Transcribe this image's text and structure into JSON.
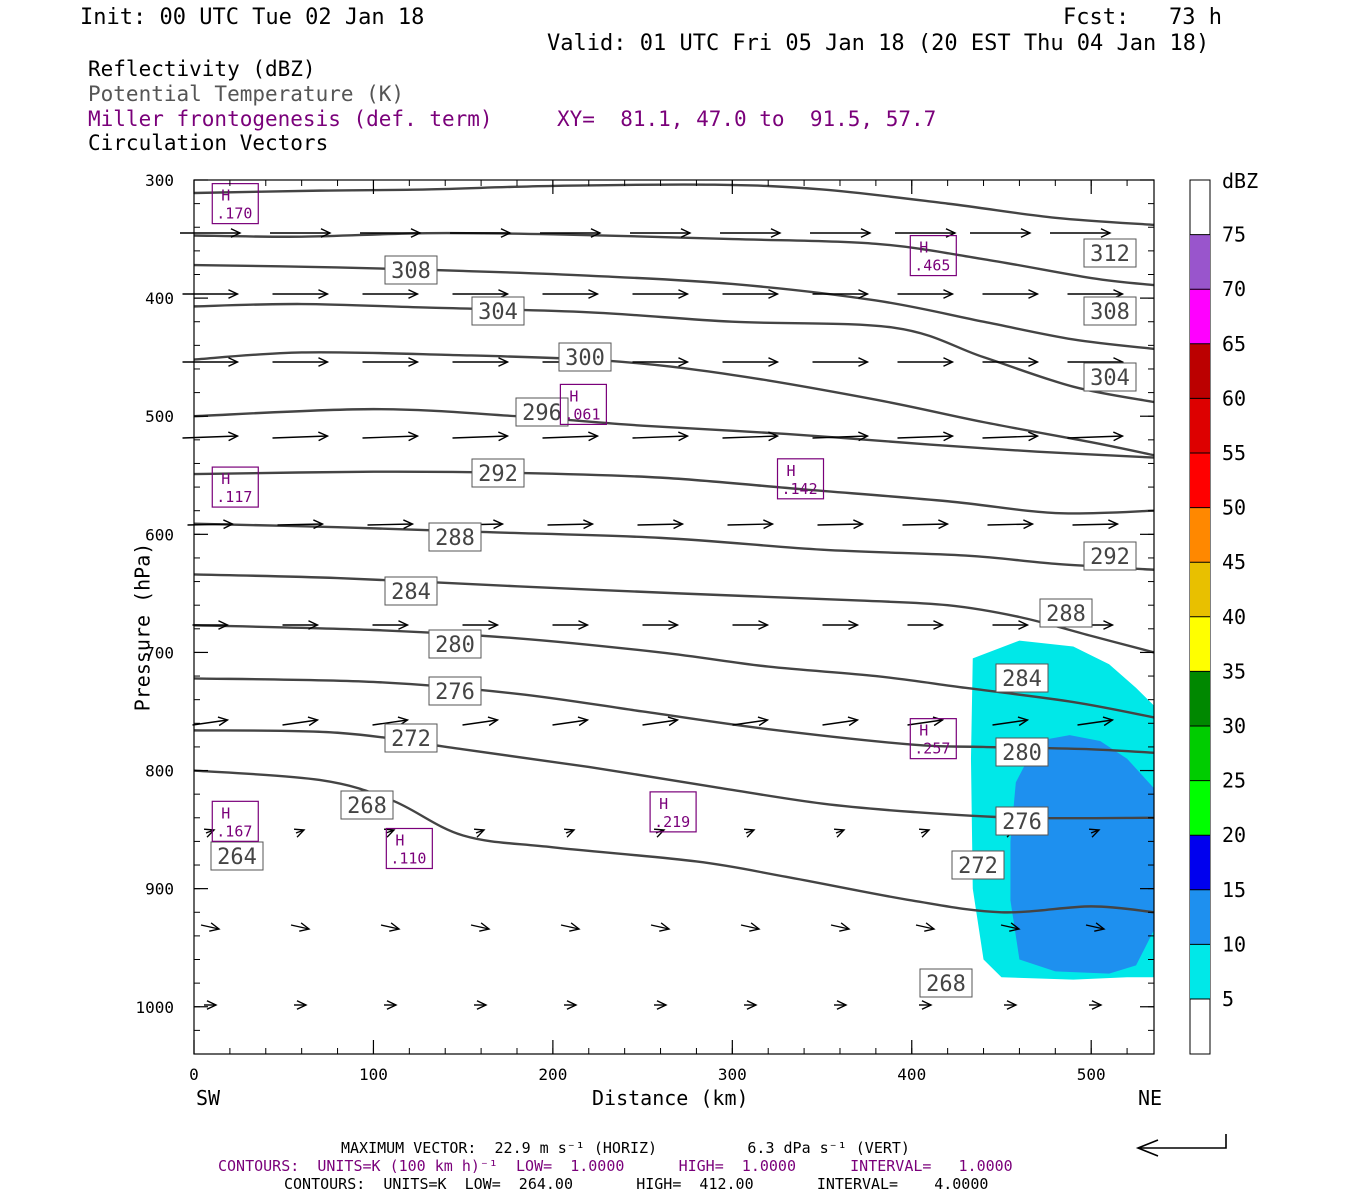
{
  "header": {
    "init": "Init: 00 UTC Tue 02 Jan 18",
    "fcst": "Fcst:   73 h",
    "valid": "Valid: 01 UTC Fri 05 Jan 18 (20 EST Thu 04 Jan 18)"
  },
  "fields": [
    {
      "label": "Reflectivity (dBZ)",
      "color": "#000000"
    },
    {
      "label": "Potential Temperature (K)",
      "color": "#555555"
    },
    {
      "label": "Miller frontogenesis (def. term)",
      "color": "#7a007a"
    },
    {
      "label": "Circulation Vectors",
      "color": "#000000"
    }
  ],
  "xy_label": "XY=  81.1, 47.0 to  91.5, 57.7",
  "footer": {
    "max_vector": "MAXIMUM VECTOR:  22.9 m s⁻¹ (HORIZ)          6.3 dPa s⁻¹ (VERT)",
    "contours_front": "CONTOURS:  UNITS=K (100 km h)⁻¹  LOW=  1.0000      HIGH=  1.0000      INTERVAL=   1.0000",
    "contours_theta": "CONTOURS:  UNITS=K  LOW=  264.00       HIGH=  412.00       INTERVAL=    4.0000"
  },
  "chart_data": {
    "type": "cross-section",
    "xlabel": "Distance (km)",
    "ylabel": "Pressure (hPa)",
    "x_ticks": [
      0,
      100,
      200,
      300,
      400,
      500
    ],
    "y_ticks": [
      300,
      400,
      500,
      600,
      700,
      800,
      900,
      1000
    ],
    "xlim": [
      0,
      535
    ],
    "ylim": [
      300,
      1040
    ],
    "x_end_labels": {
      "left": "SW",
      "right": "NE"
    },
    "colorbar": {
      "title": "dBZ",
      "levels": [
        5,
        10,
        15,
        20,
        25,
        30,
        35,
        40,
        45,
        50,
        55,
        60,
        65,
        70,
        75
      ],
      "colors": [
        "#00e8e8",
        "#1e90ef",
        "#0000ee",
        "#00ff00",
        "#00cc00",
        "#008800",
        "#ffff00",
        "#e8c000",
        "#ff8800",
        "#ff0000",
        "#dd0000",
        "#bb0000",
        "#ff00ff",
        "#9955cc"
      ]
    },
    "theta_contours": [
      {
        "level": 312,
        "points": [
          [
            0,
            311
          ],
          [
            70,
            309
          ],
          [
            130,
            308
          ],
          [
            200,
            305
          ],
          [
            290,
            304
          ],
          [
            350,
            308
          ],
          [
            420,
            320
          ],
          [
            480,
            332
          ],
          [
            535,
            338
          ]
        ]
      },
      {
        "level": 308,
        "points": [
          [
            0,
            347
          ],
          [
            60,
            348
          ],
          [
            130,
            345
          ],
          [
            200,
            346
          ],
          [
            300,
            350
          ],
          [
            380,
            354
          ],
          [
            440,
            367
          ],
          [
            500,
            383
          ],
          [
            535,
            389
          ]
        ]
      },
      {
        "level": 304,
        "points": [
          [
            0,
            372
          ],
          [
            80,
            374
          ],
          [
            150,
            377
          ],
          [
            220,
            381
          ],
          [
            300,
            388
          ],
          [
            380,
            402
          ],
          [
            440,
            420
          ],
          [
            490,
            435
          ],
          [
            535,
            443
          ]
        ]
      },
      {
        "level": 300,
        "points": [
          [
            0,
            407
          ],
          [
            60,
            405
          ],
          [
            130,
            408
          ],
          [
            220,
            412
          ],
          [
            300,
            420
          ],
          [
            390,
            425
          ],
          [
            440,
            450
          ],
          [
            490,
            475
          ],
          [
            535,
            488
          ]
        ]
      },
      {
        "level": 296,
        "points": [
          [
            0,
            452
          ],
          [
            60,
            446
          ],
          [
            140,
            448
          ],
          [
            230,
            453
          ],
          [
            300,
            465
          ],
          [
            380,
            486
          ],
          [
            440,
            505
          ],
          [
            500,
            522
          ],
          [
            535,
            533
          ]
        ]
      },
      {
        "level": 292,
        "points": [
          [
            0,
            500
          ],
          [
            100,
            494
          ],
          [
            180,
            500
          ],
          [
            250,
            508
          ],
          [
            330,
            515
          ],
          [
            410,
            524
          ],
          [
            470,
            530
          ],
          [
            535,
            535
          ]
        ]
      },
      {
        "level": 288,
        "points": [
          [
            0,
            549
          ],
          [
            100,
            547
          ],
          [
            180,
            548
          ],
          [
            260,
            552
          ],
          [
            340,
            562
          ],
          [
            420,
            572
          ],
          [
            480,
            582
          ],
          [
            535,
            580
          ]
        ]
      },
      {
        "level": 284,
        "points": [
          [
            0,
            591
          ],
          [
            80,
            594
          ],
          [
            160,
            598
          ],
          [
            260,
            603
          ],
          [
            350,
            613
          ],
          [
            430,
            618
          ],
          [
            480,
            625
          ],
          [
            535,
            630
          ]
        ]
      },
      {
        "level": 280,
        "points": [
          [
            0,
            634
          ],
          [
            80,
            637
          ],
          [
            180,
            644
          ],
          [
            270,
            650
          ],
          [
            370,
            656
          ],
          [
            420,
            660
          ],
          [
            460,
            670
          ],
          [
            500,
            686
          ],
          [
            535,
            700
          ]
        ]
      },
      {
        "level": 276,
        "points": [
          [
            0,
            677
          ],
          [
            100,
            681
          ],
          [
            180,
            688
          ],
          [
            260,
            700
          ],
          [
            320,
            712
          ],
          [
            380,
            720
          ],
          [
            430,
            730
          ],
          [
            490,
            742
          ],
          [
            535,
            755
          ]
        ]
      },
      {
        "level": 272,
        "points": [
          [
            0,
            722
          ],
          [
            100,
            725
          ],
          [
            180,
            735
          ],
          [
            250,
            750
          ],
          [
            320,
            765
          ],
          [
            400,
            778
          ],
          [
            440,
            780
          ],
          [
            500,
            782
          ],
          [
            535,
            785
          ]
        ]
      },
      {
        "level": 268,
        "points": [
          [
            0,
            766
          ],
          [
            80,
            768
          ],
          [
            150,
            782
          ],
          [
            220,
            797
          ],
          [
            290,
            814
          ],
          [
            350,
            828
          ],
          [
            400,
            835
          ],
          [
            460,
            840
          ],
          [
            535,
            840
          ]
        ]
      },
      {
        "level": 264,
        "points": [
          [
            0,
            800
          ],
          [
            70,
            808
          ],
          [
            110,
            825
          ],
          [
            150,
            855
          ],
          [
            200,
            865
          ],
          [
            280,
            877
          ],
          [
            330,
            890
          ],
          [
            400,
            910
          ],
          [
            450,
            920
          ],
          [
            500,
            915
          ],
          [
            535,
            920
          ]
        ]
      }
    ],
    "frontogenesis_maxima": [
      {
        "x": 23,
        "p": 320,
        "value": ".170"
      },
      {
        "x": 412,
        "p": 364,
        "value": ".465"
      },
      {
        "x": 217,
        "p": 490,
        "value": ".061"
      },
      {
        "x": 23,
        "p": 560,
        "value": ".117"
      },
      {
        "x": 338,
        "p": 553,
        "value": ".142"
      },
      {
        "x": 412,
        "p": 773,
        "value": ".257"
      },
      {
        "x": 23,
        "p": 843,
        "value": ".167"
      },
      {
        "x": 120,
        "p": 866,
        "value": ".110"
      },
      {
        "x": 267,
        "p": 835,
        "value": ".219"
      }
    ],
    "max_vector": {
      "horiz_m_s": 22.9,
      "vert_dPa_s": 6.3
    }
  }
}
